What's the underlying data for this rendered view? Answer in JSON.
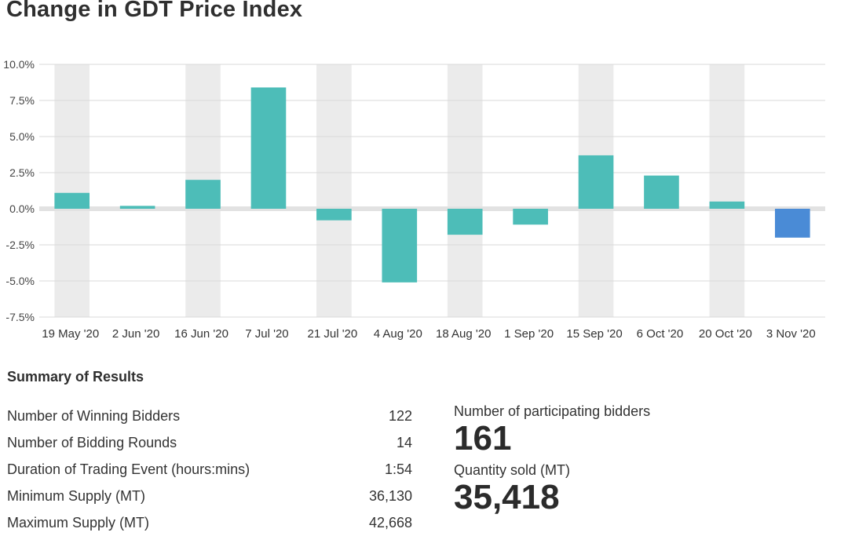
{
  "chart_title": "Change in GDT Price Index",
  "chart_data": {
    "type": "bar",
    "title": "Change in GDT Price Index",
    "categories": [
      "19 May '20",
      "2 Jun '20",
      "16 Jun '20",
      "7 Jul '20",
      "21 Jul '20",
      "4 Aug '20",
      "18 Aug '20",
      "1 Sep '20",
      "15 Sep '20",
      "6 Oct '20",
      "20 Oct '20",
      "3 Nov '20"
    ],
    "values": [
      1.1,
      0.2,
      2.0,
      8.4,
      -0.8,
      -5.1,
      -1.8,
      -1.1,
      3.7,
      2.3,
      0.5,
      -2.0
    ],
    "yticks": [
      "10.0%",
      "7.5%",
      "5.0%",
      "2.5%",
      "0.0%",
      "-2.5%",
      "-5.0%",
      "-7.5%"
    ],
    "ytick_values": [
      10,
      7.5,
      5,
      2.5,
      0,
      -2.5,
      -5,
      -7.5
    ],
    "ylim": [
      -7.5,
      10
    ],
    "highlight_index": 11,
    "bar_color": "#4dbdb8",
    "highlight_color": "#4a8bd6",
    "band_color": "#ebebeb",
    "xlabel": "",
    "ylabel": ""
  },
  "summary": {
    "heading": "Summary of Results",
    "rows": [
      {
        "label": "Number of Winning Bidders",
        "value": "122"
      },
      {
        "label": "Number of Bidding Rounds",
        "value": "14"
      },
      {
        "label": "Duration of Trading Event (hours:mins)",
        "value": "1:54"
      },
      {
        "label": "Minimum Supply (MT)",
        "value": "36,130"
      },
      {
        "label": "Maximum Supply (MT)",
        "value": "42,668"
      }
    ]
  },
  "stats": {
    "participants_label": "Number of participating bidders",
    "participants_value": "161",
    "quantity_label": "Quantity sold (MT)",
    "quantity_value": "35,418"
  }
}
